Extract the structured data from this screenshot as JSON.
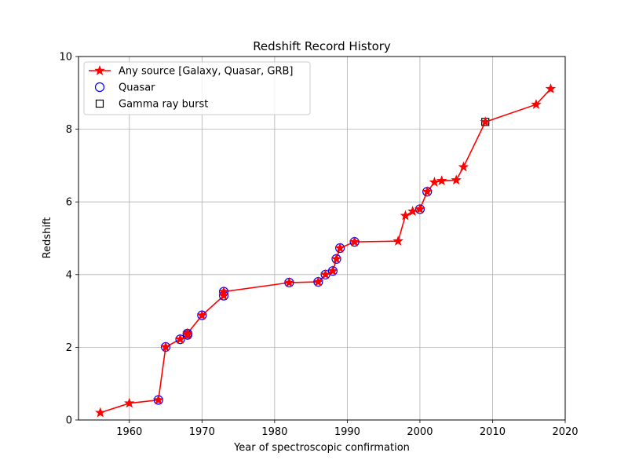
{
  "chart_data": {
    "type": "line",
    "title": "Redshift Record History",
    "xlabel": "Year of spectroscopic confirmation",
    "ylabel": "Redshift",
    "xlim": [
      1953,
      2020
    ],
    "ylim": [
      0,
      10
    ],
    "xticks": [
      1960,
      1970,
      1980,
      1990,
      2000,
      2010,
      2020
    ],
    "yticks": [
      0,
      2,
      4,
      6,
      8,
      10
    ],
    "grid": true,
    "legend_position": "upper-left",
    "series": [
      {
        "name": "Any source [Galaxy, Quasar, GRB]",
        "marker": "star",
        "color": "#ff0000",
        "x": [
          1956,
          1960,
          1964,
          1965,
          1967,
          1968,
          1968,
          1970,
          1973,
          1973,
          1982,
          1986,
          1987,
          1988,
          1988.5,
          1989,
          1991,
          1997,
          1998,
          1999,
          2000,
          2001,
          2002,
          2003,
          2005,
          2006,
          2009,
          2016,
          2018
        ],
        "y": [
          0.2,
          0.46,
          0.55,
          2.01,
          2.22,
          2.34,
          2.38,
          2.88,
          3.42,
          3.53,
          3.78,
          3.8,
          4.0,
          4.1,
          4.43,
          4.73,
          4.9,
          4.92,
          5.62,
          5.74,
          5.8,
          6.28,
          6.54,
          6.58,
          6.6,
          6.96,
          8.2,
          8.68,
          9.11
        ]
      },
      {
        "name": "Quasar",
        "marker": "circle",
        "color": "#0000ff",
        "x": [
          1964,
          1965,
          1967,
          1968,
          1968,
          1970,
          1973,
          1973,
          1982,
          1986,
          1987,
          1988,
          1988.5,
          1989,
          1991,
          2000,
          2001
        ],
        "y": [
          0.55,
          2.01,
          2.22,
          2.34,
          2.38,
          2.88,
          3.42,
          3.53,
          3.78,
          3.8,
          4.0,
          4.1,
          4.43,
          4.73,
          4.9,
          5.8,
          6.28
        ]
      },
      {
        "name": "Gamma ray burst",
        "marker": "square",
        "color": "#000000",
        "x": [
          2009
        ],
        "y": [
          8.2
        ]
      }
    ]
  }
}
